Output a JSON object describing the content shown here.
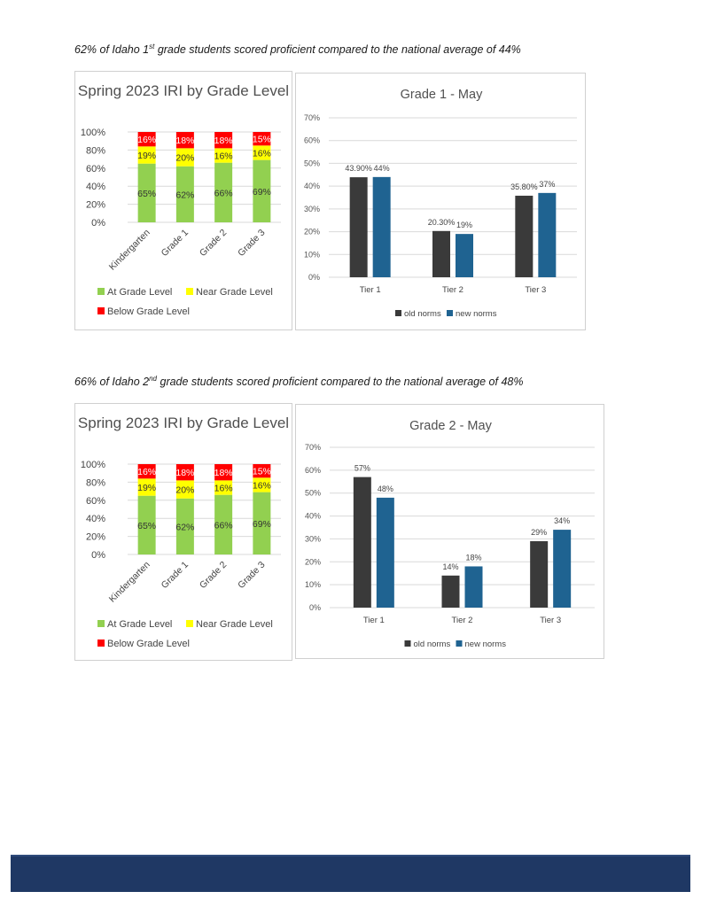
{
  "page": {
    "caption1": {
      "pre": "62% of Idaho 1",
      "sup": "st",
      "post": " grade students scored proficient compared to the national average of 44%"
    },
    "caption2": {
      "pre": "66% of Idaho 2",
      "sup": "nd",
      "post": " grade students scored proficient compared to the national average of 48%"
    },
    "footer_color": "#1f3864"
  },
  "chart_data": [
    {
      "type": "bar",
      "stacked": true,
      "title": "Spring 2023 IRI by Grade Level",
      "categories": [
        "Kindergarten",
        "Grade 1",
        "Grade 2",
        "Grade 3"
      ],
      "series": [
        {
          "name": "At Grade Level",
          "values": [
            65,
            62,
            66,
            69
          ],
          "color": "#92d050"
        },
        {
          "name": "Near Grade Level",
          "values": [
            19,
            20,
            16,
            16
          ],
          "color": "#ffff00"
        },
        {
          "name": "Below Grade Level",
          "values": [
            16,
            18,
            18,
            15
          ],
          "color": "#ff0000"
        }
      ],
      "ylim": [
        0,
        100
      ],
      "yticks": [
        "0%",
        "20%",
        "40%",
        "60%",
        "80%",
        "100%"
      ],
      "grid": true,
      "legend": "bottom"
    },
    {
      "type": "bar",
      "title": "Grade 1 - May",
      "categories": [
        "Tier 1",
        "Tier 2",
        "Tier 3"
      ],
      "series": [
        {
          "name": "old norms",
          "values": [
            43.9,
            20.3,
            35.8
          ],
          "labels": [
            "43.90%",
            "20.30%",
            "35.80%"
          ],
          "color": "#3a3a3a"
        },
        {
          "name": "new norms",
          "values": [
            44,
            19,
            37
          ],
          "labels": [
            "44%",
            "19%",
            "37%"
          ],
          "color": "#1f6391"
        }
      ],
      "ylim": [
        0,
        70
      ],
      "yticks": [
        "0%",
        "10%",
        "20%",
        "30%",
        "40%",
        "50%",
        "60%",
        "70%"
      ],
      "grid": true,
      "legend": "bottom"
    },
    {
      "type": "bar",
      "stacked": true,
      "title": "Spring 2023 IRI by Grade Level",
      "categories": [
        "Kindergarten",
        "Grade 1",
        "Grade 2",
        "Grade 3"
      ],
      "series": [
        {
          "name": "At Grade Level",
          "values": [
            65,
            62,
            66,
            69
          ],
          "color": "#92d050"
        },
        {
          "name": "Near Grade Level",
          "values": [
            19,
            20,
            16,
            16
          ],
          "color": "#ffff00"
        },
        {
          "name": "Below Grade Level",
          "values": [
            16,
            18,
            18,
            15
          ],
          "color": "#ff0000"
        }
      ],
      "ylim": [
        0,
        100
      ],
      "yticks": [
        "0%",
        "20%",
        "40%",
        "60%",
        "80%",
        "100%"
      ],
      "grid": true,
      "legend": "bottom"
    },
    {
      "type": "bar",
      "title": "Grade 2 - May",
      "categories": [
        "Tier 1",
        "Tier 2",
        "Tier 3"
      ],
      "series": [
        {
          "name": "old norms",
          "values": [
            57,
            14,
            29
          ],
          "labels": [
            "57%",
            "14%",
            "29%"
          ],
          "color": "#3a3a3a"
        },
        {
          "name": "new norms",
          "values": [
            48,
            18,
            34
          ],
          "labels": [
            "48%",
            "18%",
            "34%"
          ],
          "color": "#1f6391"
        }
      ],
      "ylim": [
        0,
        70
      ],
      "yticks": [
        "0%",
        "10%",
        "20%",
        "30%",
        "40%",
        "50%",
        "60%",
        "70%"
      ],
      "grid": true,
      "legend": "bottom"
    }
  ]
}
